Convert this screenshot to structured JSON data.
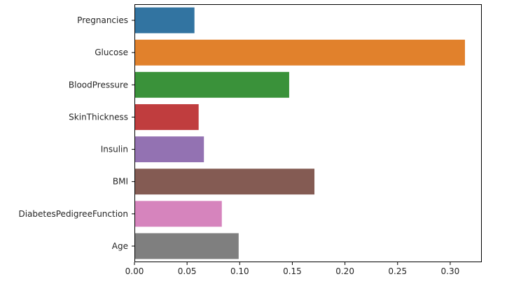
{
  "chart_data": {
    "type": "bar",
    "orientation": "horizontal",
    "title": "",
    "xlabel": "",
    "ylabel": "",
    "categories": [
      "Pregnancies",
      "Glucose",
      "BloodPressure",
      "SkinThickness",
      "Insulin",
      "BMI",
      "DiabetesPedigreeFunction",
      "Age"
    ],
    "values": [
      0.057,
      0.314,
      0.147,
      0.061,
      0.066,
      0.171,
      0.083,
      0.099
    ],
    "colors": [
      "#3274a1",
      "#e1812c",
      "#3a923a",
      "#c03d3e",
      "#9372b2",
      "#845b53",
      "#d684bd",
      "#7f7f7f"
    ],
    "xlim": [
      0,
      0.33
    ],
    "xticks": [
      0.0,
      0.05,
      0.1,
      0.15,
      0.2,
      0.25,
      0.3
    ],
    "xtick_labels": [
      "0.00",
      "0.05",
      "0.10",
      "0.15",
      "0.20",
      "0.25",
      "0.30"
    ],
    "grid": false,
    "legend": "none"
  }
}
